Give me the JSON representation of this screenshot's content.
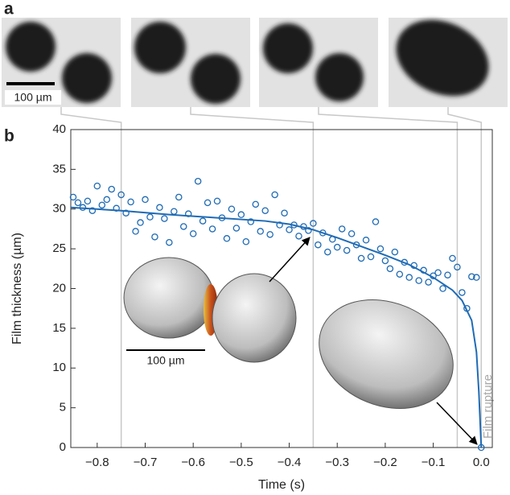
{
  "panel_labels": [
    "a",
    "b"
  ],
  "micrograph_scale_label": "100 µm",
  "chart_data": {
    "type": "scatter",
    "xlabel": "Time (s)",
    "ylabel": "Film thickness (µm)",
    "annotation": "Film rupture",
    "render_scale_label": "100 µm",
    "xlim": [
      -0.855,
      0.023
    ],
    "ylim": [
      0,
      40
    ],
    "xticks": [
      {
        "value": -0.8,
        "label": "−0.8"
      },
      {
        "value": -0.7,
        "label": "−0.7"
      },
      {
        "value": -0.6,
        "label": "−0.6"
      },
      {
        "value": -0.5,
        "label": "−0.5"
      },
      {
        "value": -0.4,
        "label": "−0.4"
      },
      {
        "value": -0.3,
        "label": "−0.3"
      },
      {
        "value": -0.2,
        "label": "−0.2"
      },
      {
        "value": -0.1,
        "label": "−0.1"
      },
      {
        "value": 0,
        "label": "0.0"
      }
    ],
    "yticks": [
      0,
      5,
      10,
      15,
      20,
      25,
      30,
      35,
      40
    ],
    "frame_times": [
      -0.75,
      -0.35,
      -0.05,
      0
    ],
    "series": [
      {
        "type": "scatter",
        "color": "#1f6bb5",
        "x": [
          -0.85,
          -0.84,
          -0.83,
          -0.82,
          -0.81,
          -0.8,
          -0.79,
          -0.78,
          -0.77,
          -0.76,
          -0.75,
          -0.74,
          -0.73,
          -0.72,
          -0.71,
          -0.7,
          -0.69,
          -0.68,
          -0.67,
          -0.66,
          -0.65,
          -0.64,
          -0.63,
          -0.62,
          -0.61,
          -0.6,
          -0.59,
          -0.58,
          -0.57,
          -0.56,
          -0.55,
          -0.54,
          -0.53,
          -0.52,
          -0.51,
          -0.5,
          -0.49,
          -0.48,
          -0.47,
          -0.46,
          -0.45,
          -0.44,
          -0.43,
          -0.42,
          -0.41,
          -0.4,
          -0.39,
          -0.38,
          -0.37,
          -0.36,
          -0.35,
          -0.34,
          -0.33,
          -0.32,
          -0.31,
          -0.3,
          -0.29,
          -0.28,
          -0.27,
          -0.26,
          -0.25,
          -0.24,
          -0.23,
          -0.22,
          -0.21,
          -0.2,
          -0.19,
          -0.18,
          -0.17,
          -0.16,
          -0.15,
          -0.14,
          -0.13,
          -0.12,
          -0.11,
          -0.1,
          -0.09,
          -0.08,
          -0.07,
          -0.06,
          -0.05,
          -0.04,
          -0.03,
          -0.02,
          -0.01,
          0
        ],
        "values": [
          31.5,
          30.8,
          30.2,
          31.0,
          29.8,
          32.9,
          30.5,
          31.2,
          32.5,
          30.1,
          31.8,
          29.5,
          30.9,
          27.2,
          28.3,
          31.2,
          29.0,
          26.5,
          30.2,
          28.8,
          25.8,
          29.7,
          31.5,
          27.8,
          29.4,
          26.9,
          33.5,
          28.5,
          30.8,
          27.5,
          31.0,
          28.9,
          26.3,
          30.0,
          27.6,
          29.3,
          25.9,
          28.4,
          30.6,
          27.2,
          29.8,
          26.8,
          31.8,
          28.0,
          29.5,
          27.4,
          28.0,
          26.6,
          27.8,
          27.3,
          28.2,
          25.5,
          27.0,
          24.6,
          26.2,
          25.2,
          27.5,
          24.8,
          26.9,
          25.5,
          23.8,
          26.1,
          24.0,
          28.4,
          25.0,
          23.5,
          22.5,
          24.6,
          21.8,
          23.3,
          21.4,
          22.9,
          21.0,
          22.3,
          20.8,
          21.6,
          22.0,
          20.0,
          21.7,
          23.8,
          22.7,
          19.5,
          17.5,
          21.5,
          21.4,
          0
        ]
      },
      {
        "type": "line",
        "color": "#1f6bb5",
        "x": [
          -0.855,
          -0.75,
          -0.65,
          -0.55,
          -0.45,
          -0.4,
          -0.35,
          -0.3,
          -0.25,
          -0.2,
          -0.15,
          -0.1,
          -0.06,
          -0.04,
          -0.02,
          -0.01,
          -0.005,
          0
        ],
        "values": [
          30.2,
          29.8,
          29.3,
          28.9,
          28.5,
          28.1,
          27.4,
          26.4,
          25.3,
          24.2,
          23.0,
          21.4,
          19.8,
          18.5,
          16.0,
          12.0,
          7,
          0
        ]
      }
    ]
  }
}
